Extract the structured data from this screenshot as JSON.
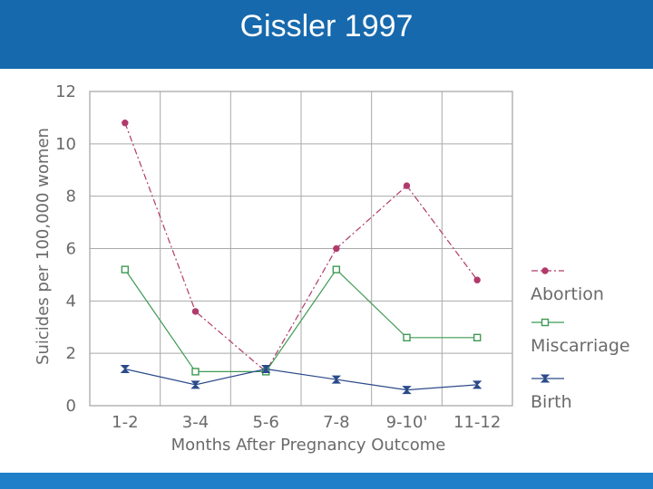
{
  "header": {
    "title": "Gissler 1997"
  },
  "colors": {
    "header_bg": "#1769ad",
    "footer_bg": "#1f7fc8",
    "abortion": "#b03a6b",
    "miscarriage": "#3e9a53",
    "birth": "#2b4a8a",
    "grid": "#a9a9a9",
    "axis_text": "#6a6a6a"
  },
  "chart_data": {
    "type": "line",
    "title": "",
    "xlabel": "Months After Pregnancy Outcome",
    "ylabel": "Suicides per 100,000 women",
    "categories": [
      "1-2",
      "3-4",
      "5-6",
      "7-8",
      "9-10'",
      "11-12"
    ],
    "ylim": [
      0,
      12
    ],
    "yticks": [
      "0",
      "2",
      "4",
      "6",
      "8",
      "10",
      "12"
    ],
    "grid": true,
    "legend_placement": "right",
    "series": [
      {
        "name": "Abortion",
        "values": [
          10.8,
          3.6,
          1.3,
          6.0,
          8.4,
          4.8
        ],
        "marker": "circle",
        "dash": "dash-dot"
      },
      {
        "name": "Miscarriage",
        "values": [
          5.2,
          1.3,
          1.3,
          5.2,
          2.6,
          2.6
        ],
        "marker": "square",
        "dash": "solid"
      },
      {
        "name": "Birth",
        "values": [
          1.4,
          0.8,
          1.4,
          1.0,
          0.6,
          0.8
        ],
        "marker": "hourglass",
        "dash": "solid"
      }
    ]
  }
}
